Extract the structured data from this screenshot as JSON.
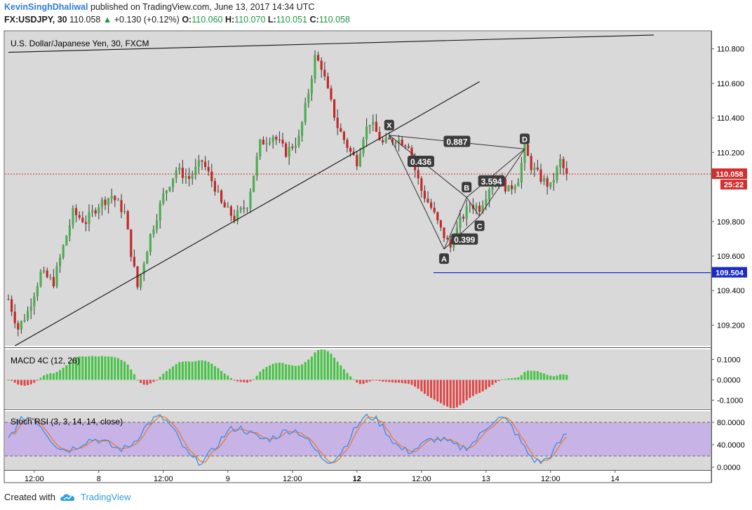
{
  "header": {
    "author": "KevinSinghDhaliwal",
    "published": "published on TradingView.com, June 13, 2017 14:34 UTC",
    "symbol": "FX:USDJPY, 30",
    "last": "110.058",
    "change": "+0.130 (+0.12%)",
    "o_label": "O:",
    "o": "110.060",
    "h_label": "H:",
    "h": "110.070",
    "l_label": "L:",
    "l": "110.051",
    "c_label": "C:",
    "c": "110.058"
  },
  "footer": {
    "created": "Created with",
    "brand": "TradingView"
  },
  "colors": {
    "up": "#4caf50",
    "down": "#c62828",
    "macd_up": "#43c343",
    "macd_down": "#e04545",
    "rsi_band": "#c8b3e6",
    "k": "#3a8ee6",
    "d": "#f07a2a",
    "pane_bg": "#d9d9d9"
  },
  "chart_data": [
    {
      "type": "candlestick",
      "title": "U.S. Dollar/Japanese Yen, 30, FXCM",
      "ylim": [
        109.08,
        110.9
      ],
      "y_ticks": [
        "110.800",
        "110.600",
        "110.400",
        "110.200",
        "110.000",
        "109.800",
        "109.600",
        "109.400",
        "109.200"
      ],
      "x_ticks": [
        "12:00",
        "8",
        "12:00",
        "9",
        "12:00",
        "12",
        "12:00",
        "13",
        "12:00",
        "14"
      ],
      "x_index": [
        8,
        28,
        48,
        68,
        88,
        108,
        128,
        148,
        168,
        188
      ],
      "price_label": "110.058",
      "countdown": "25:22",
      "support_label": "109.504",
      "support": 109.504,
      "harmonic": {
        "points": [
          {
            "label": "X",
            "i": 118,
            "price": 110.3
          },
          {
            "label": "A",
            "i": 135,
            "price": 109.64
          },
          {
            "label": "B",
            "i": 142,
            "price": 109.94
          },
          {
            "label": "C",
            "i": 146,
            "price": 109.83
          },
          {
            "label": "D",
            "i": 160,
            "price": 110.22
          }
        ],
        "ratios": [
          "0.887",
          "0.436",
          "3.594",
          "0.399"
        ]
      },
      "trendlines": [
        {
          "from": {
            "i": 0,
            "price": 110.78
          },
          "to": {
            "i": 200,
            "price": 110.88
          }
        },
        {
          "from": {
            "i": 2,
            "price": 109.08
          },
          "to": {
            "i": 146,
            "price": 110.61
          }
        }
      ]
    },
    {
      "type": "histogram",
      "title": "MACD 4C (12, 26)",
      "ylim": [
        -0.14,
        0.15
      ],
      "y_ticks": [
        "0.1000",
        "0.0000",
        "-0.1000"
      ]
    },
    {
      "type": "line",
      "title": "Stoch RSI (3, 3, 14, 14, close)",
      "ylim": [
        -5,
        100
      ],
      "bands": [
        20,
        80
      ],
      "y_ticks": [
        "80.0000",
        "40.0000",
        "0.0000"
      ]
    }
  ]
}
